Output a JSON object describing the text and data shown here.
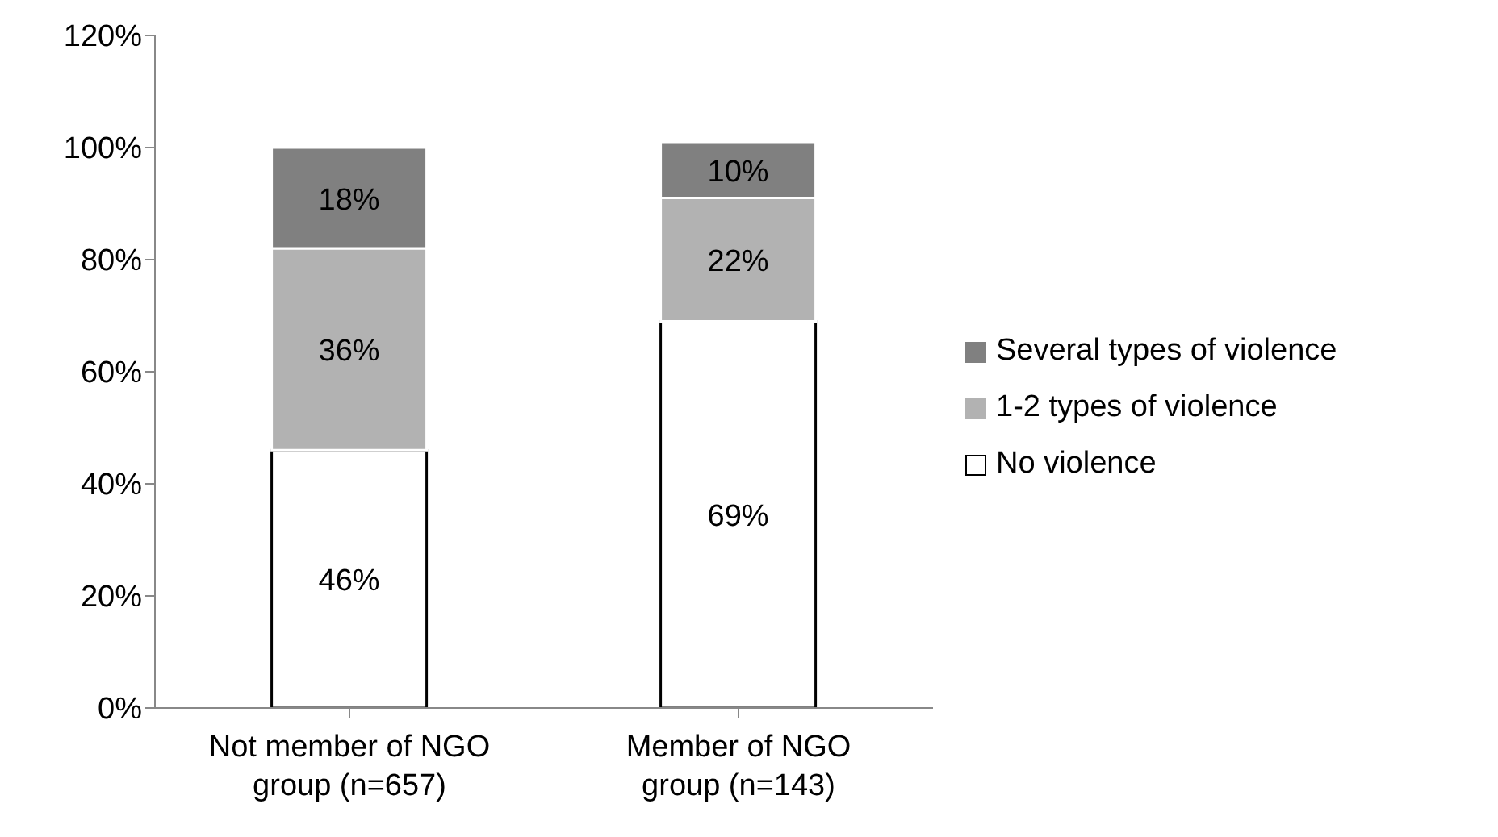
{
  "chart_data": {
    "type": "bar",
    "stacked": true,
    "categories": [
      "Not member of NGO group (n=657)",
      "Member of NGO group (n=143)"
    ],
    "series": [
      {
        "name": "No violence",
        "color": "#ffffff",
        "values": [
          46,
          69
        ],
        "value_labels": [
          "46%",
          "69%"
        ]
      },
      {
        "name": "1-2 types of violence",
        "color": "#b2b2b2",
        "values": [
          36,
          22
        ],
        "value_labels": [
          "36%",
          "22%"
        ]
      },
      {
        "name": "Several types of violence",
        "color": "#808080",
        "values": [
          18,
          10
        ],
        "value_labels": [
          "18%",
          "10%"
        ]
      }
    ],
    "ylim": [
      0,
      120
    ],
    "yticks": [
      {
        "value": 0,
        "label": "0%"
      },
      {
        "value": 20,
        "label": "20%"
      },
      {
        "value": 40,
        "label": "40%"
      },
      {
        "value": 60,
        "label": "60%"
      },
      {
        "value": 80,
        "label": "80%"
      },
      {
        "value": 100,
        "label": "100%"
      },
      {
        "value": 120,
        "label": "120%"
      }
    ],
    "legend": "right",
    "grid": false
  }
}
